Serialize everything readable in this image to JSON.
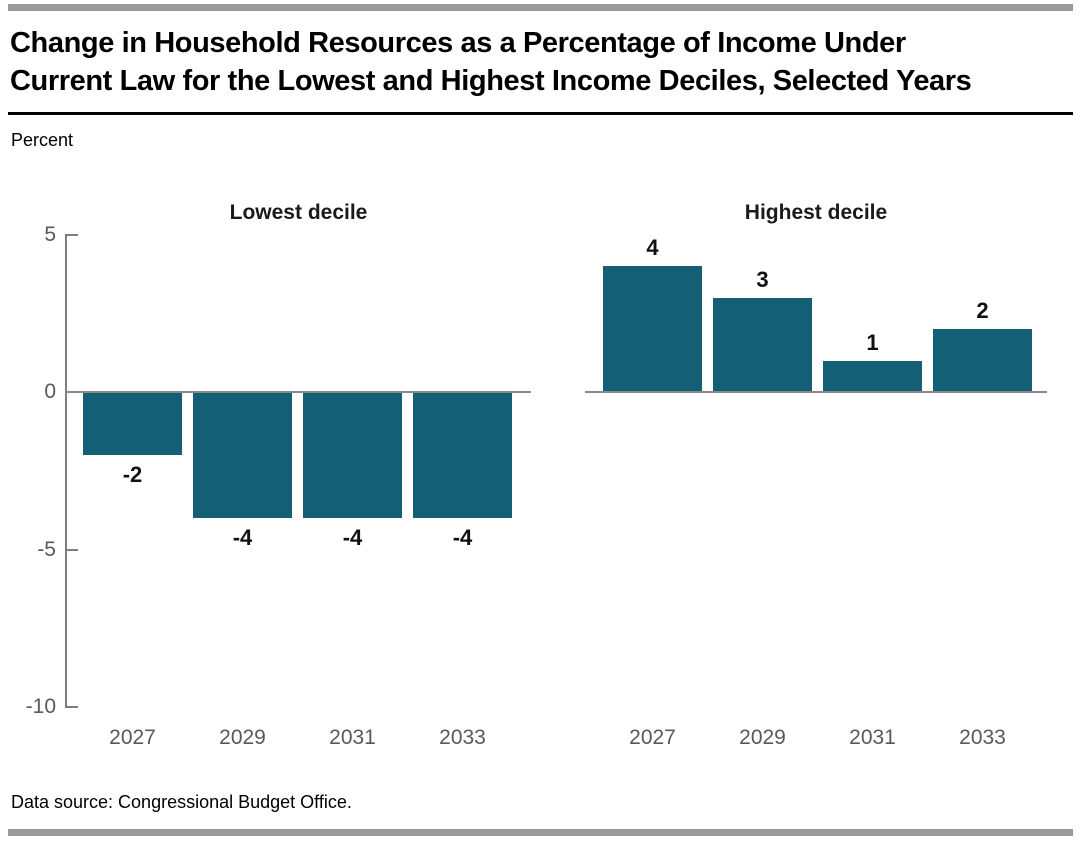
{
  "header": {
    "title_lines": [
      "Change in Household Resources as a Percentage of Income Under",
      "Current Law for the Lowest and Highest Income Deciles, Selected Years"
    ],
    "unit_label": "Percent"
  },
  "footer": {
    "source": "Data source: Congressional Budget Office."
  },
  "chart_data": {
    "type": "bar",
    "categories": [
      "2027",
      "2029",
      "2031",
      "2033"
    ],
    "panels": [
      {
        "key": "lowest-decile",
        "title": "Lowest decile",
        "values": [
          -2,
          -4,
          -4,
          -4
        ]
      },
      {
        "key": "highest-decile",
        "title": "Highest decile",
        "values": [
          4,
          3,
          1,
          2
        ]
      }
    ],
    "ylabel": "Percent",
    "yticks": [
      5,
      0,
      -5,
      -10
    ],
    "ylim": [
      -10,
      5
    ],
    "bar_color": "#145f76",
    "axis_color": "#7d7d7d",
    "tick_label_color": "#595959",
    "grid": false,
    "legend": "none",
    "data_labels": true
  }
}
